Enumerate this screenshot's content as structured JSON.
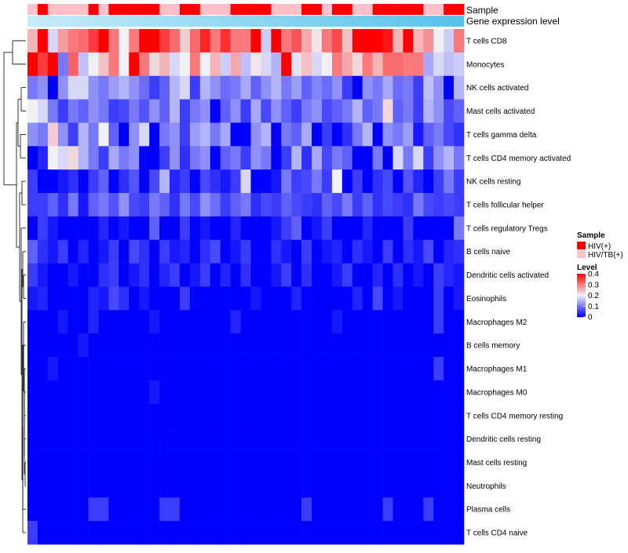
{
  "chart_data": {
    "type": "heatmap",
    "title": "",
    "annotation_tracks": [
      {
        "name": "Sample",
        "type": "categorical"
      },
      {
        "name": "Gene expression level",
        "type": "continuous"
      }
    ],
    "rows": [
      "T cells CD8",
      "Monocytes",
      "NK cells activated",
      "Mast cells activated",
      "T cells gamma delta",
      "T cells CD4 memory activated",
      "NK cells resting",
      "T cells follicular helper",
      "T cells regulatory  Tregs",
      "B cells naive",
      "Dendritic cells activated",
      "Eosinophils",
      "Macrophages M2",
      "B cells memory",
      "Macrophages M1",
      "Macrophages M0",
      "T cells CD4 memory resting",
      "Dendritic cells resting",
      "Mast cells resting",
      "Neutrophils",
      "Plasma cells",
      "T cells CD4 naive"
    ],
    "n_samples": 43,
    "sample_groups": [
      "HIV/TB(+)",
      "HIV(+)",
      "HIV/TB(+)",
      "HIV/TB(+)",
      "HIV/TB(+)",
      "HIV/TB(+)",
      "HIV(+)",
      "HIV/TB(+)",
      "HIV(+)",
      "HIV(+)",
      "HIV(+)",
      "HIV(+)",
      "HIV(+)",
      "HIV/TB(+)",
      "HIV/TB(+)",
      "HIV(+)",
      "HIV(+)",
      "HIV/TB(+)",
      "HIV/TB(+)",
      "HIV/TB(+)",
      "HIV(+)",
      "HIV(+)",
      "HIV(+)",
      "HIV(+)",
      "HIV/TB(+)",
      "HIV/TB(+)",
      "HIV/TB(+)",
      "HIV(+)",
      "HIV(+)",
      "HIV/TB(+)",
      "HIV(+)",
      "HIV(+)",
      "HIV/TB(+)",
      "HIV/TB(+)",
      "HIV(+)",
      "HIV(+)",
      "HIV(+)",
      "HIV(+)",
      "HIV(+)",
      "HIV/TB(+)",
      "HIV/TB(+)",
      "HIV(+)",
      "HIV(+)"
    ],
    "values": [
      [
        0.25,
        0.4,
        0.18,
        0.27,
        0.3,
        0.31,
        0.35,
        0.4,
        0.3,
        0.2,
        0.3,
        0.4,
        0.4,
        0.35,
        0.31,
        0.23,
        0.31,
        0.37,
        0.3,
        0.36,
        0.3,
        0.3,
        0.4,
        0.17,
        0.4,
        0.3,
        0.33,
        0.26,
        0.21,
        0.3,
        0.34,
        0.24,
        0.4,
        0.4,
        0.4,
        0.38,
        0.25,
        0.4,
        0.25,
        0.28,
        0.2,
        0.17,
        0.3
      ],
      [
        0.4,
        0.35,
        0.4,
        0.1,
        0.32,
        0.16,
        0.2,
        0.24,
        0.3,
        0.2,
        0.4,
        0.3,
        0.22,
        0.25,
        0.18,
        0.2,
        0.3,
        0.2,
        0.25,
        0.17,
        0.26,
        0.16,
        0.21,
        0.18,
        0.15,
        0.4,
        0.19,
        0.24,
        0.18,
        0.2,
        0.3,
        0.26,
        0.22,
        0.3,
        0.25,
        0.31,
        0.31,
        0.3,
        0.3,
        0.14,
        0.18,
        0.16,
        0.17
      ],
      [
        0.1,
        0.12,
        0.0,
        0.12,
        0.18,
        0.18,
        0.12,
        0.1,
        0.13,
        0.15,
        0.12,
        0.09,
        0.05,
        0.08,
        0.15,
        0.18,
        0.05,
        0.15,
        0.12,
        0.09,
        0.1,
        0.14,
        0.08,
        0.12,
        0.15,
        0.1,
        0.13,
        0.08,
        0.11,
        0.09,
        0.12,
        0.05,
        0.0,
        0.12,
        0.1,
        0.14,
        0.09,
        0.1,
        0.05,
        0.16,
        0.12,
        0.0,
        0.15
      ],
      [
        0.2,
        0.18,
        0.1,
        0.05,
        0.1,
        0.08,
        0.12,
        0.1,
        0.05,
        0.06,
        0.1,
        0.07,
        0.12,
        0.08,
        0.15,
        0.05,
        0.1,
        0.12,
        0.0,
        0.08,
        0.12,
        0.05,
        0.14,
        0.06,
        0.12,
        0.08,
        0.05,
        0.1,
        0.12,
        0.06,
        0.08,
        0.1,
        0.15,
        0.08,
        0.1,
        0.22,
        0.08,
        0.1,
        0.05,
        0.15,
        0.12,
        0.06,
        0.08
      ],
      [
        0.12,
        0.1,
        0.23,
        0.12,
        0.05,
        0.15,
        0.1,
        0.2,
        0.08,
        0.0,
        0.12,
        0.18,
        0.0,
        0.1,
        0.12,
        0.05,
        0.13,
        0.15,
        0.1,
        0.14,
        0.0,
        0.0,
        0.12,
        0.15,
        0.0,
        0.1,
        0.08,
        0.14,
        0.0,
        0.05,
        0.0,
        0.04,
        0.1,
        0.15,
        0.0,
        0.12,
        0.1,
        0.13,
        0.02,
        0.08,
        0.1,
        0.06,
        0.04
      ],
      [
        0.0,
        0.03,
        0.2,
        0.18,
        0.22,
        0.15,
        0.1,
        0.05,
        0.14,
        0.1,
        0.12,
        0.0,
        0.0,
        0.05,
        0.12,
        0.04,
        0.1,
        0.12,
        0.0,
        0.08,
        0.1,
        0.05,
        0.12,
        0.1,
        0.0,
        0.05,
        0.15,
        0.04,
        0.14,
        0.06,
        0.1,
        0.08,
        0.0,
        0.0,
        0.1,
        0.0,
        0.18,
        0.1,
        0.18,
        0.05,
        0.12,
        0.15,
        0.1
      ],
      [
        0.05,
        0.0,
        0.0,
        0.02,
        0.04,
        0.0,
        0.05,
        0.08,
        0.0,
        0.04,
        0.07,
        0.0,
        0.06,
        0.15,
        0.03,
        0.05,
        0.0,
        0.06,
        0.04,
        0.02,
        0.05,
        0.18,
        0.0,
        0.0,
        0.02,
        0.1,
        0.05,
        0.06,
        0.1,
        0.05,
        0.2,
        0.0,
        0.05,
        0.0,
        0.04,
        0.06,
        0.0,
        0.07,
        0.03,
        0.0,
        0.05,
        0.1,
        0.05
      ],
      [
        0.05,
        0.05,
        0.08,
        0.04,
        0.1,
        0.02,
        0.08,
        0.1,
        0.07,
        0.12,
        0.06,
        0.05,
        0.1,
        0.08,
        0.04,
        0.1,
        0.06,
        0.12,
        0.09,
        0.05,
        0.08,
        0.1,
        0.04,
        0.06,
        0.05,
        0.08,
        0.06,
        0.05,
        0.04,
        0.08,
        0.06,
        0.1,
        0.05,
        0.08,
        0.04,
        0.06,
        0.05,
        0.04,
        0.1,
        0.06,
        0.05,
        0.06,
        0.05
      ],
      [
        0.0,
        0.05,
        0.02,
        0.0,
        0.0,
        0.0,
        0.0,
        0.03,
        0.0,
        0.02,
        0.0,
        0.0,
        0.08,
        0.0,
        0.0,
        0.05,
        0.0,
        0.02,
        0.0,
        0.0,
        0.03,
        0.0,
        0.0,
        0.0,
        0.02,
        0.05,
        0.08,
        0.0,
        0.02,
        0.05,
        0.0,
        0.0,
        0.0,
        0.03,
        0.0,
        0.0,
        0.0,
        0.05,
        0.0,
        0.0,
        0.0,
        0.0,
        0.1
      ],
      [
        0.08,
        0.04,
        0.02,
        0.05,
        0.0,
        0.03,
        0.0,
        0.02,
        0.05,
        0.0,
        0.06,
        0.04,
        0.0,
        0.05,
        0.02,
        0.03,
        0.0,
        0.04,
        0.06,
        0.0,
        0.02,
        0.05,
        0.0,
        0.0,
        0.04,
        0.02,
        0.0,
        0.05,
        0.0,
        0.02,
        0.03,
        0.0,
        0.04,
        0.02,
        0.0,
        0.05,
        0.0,
        0.04,
        0.02,
        0.06,
        0.0,
        0.03,
        0.04
      ],
      [
        0.05,
        0.02,
        0.0,
        0.0,
        0.02,
        0.0,
        0.0,
        0.04,
        0.05,
        0.0,
        0.02,
        0.04,
        0.0,
        0.03,
        0.05,
        0.0,
        0.02,
        0.05,
        0.0,
        0.03,
        0.0,
        0.04,
        0.0,
        0.0,
        0.02,
        0.05,
        0.0,
        0.04,
        0.0,
        0.0,
        0.02,
        0.05,
        0.0,
        0.0,
        0.03,
        0.0,
        0.04,
        0.0,
        0.02,
        0.0,
        0.05,
        0.03,
        0.02
      ],
      [
        0.02,
        0.03,
        0.0,
        0.0,
        0.0,
        0.0,
        0.03,
        0.02,
        0.06,
        0.04,
        0.0,
        0.02,
        0.0,
        0.0,
        0.0,
        0.05,
        0.0,
        0.0,
        0.0,
        0.0,
        0.0,
        0.0,
        0.02,
        0.0,
        0.0,
        0.0,
        0.03,
        0.0,
        0.0,
        0.0,
        0.0,
        0.0,
        0.03,
        0.0,
        0.06,
        0.0,
        0.02,
        0.0,
        0.0,
        0.0,
        0.05,
        0.0,
        0.02
      ],
      [
        0.0,
        0.0,
        0.0,
        0.02,
        0.0,
        0.0,
        0.03,
        0.0,
        0.0,
        0.0,
        0.0,
        0.0,
        0.02,
        0.0,
        0.0,
        0.0,
        0.0,
        0.0,
        0.0,
        0.0,
        0.03,
        0.0,
        0.0,
        0.0,
        0.0,
        0.0,
        0.0,
        0.0,
        0.0,
        0.0,
        0.02,
        0.0,
        0.0,
        0.0,
        0.0,
        0.0,
        0.0,
        0.0,
        0.0,
        0.0,
        0.05,
        0.0,
        0.0
      ],
      [
        0.0,
        0.0,
        0.0,
        0.0,
        0.0,
        0.02,
        0.0,
        0.0,
        0.0,
        0.0,
        0.0,
        0.0,
        0.0,
        0.0,
        0.0,
        0.0,
        0.0,
        0.0,
        0.0,
        0.0,
        0.0,
        0.0,
        0.0,
        0.0,
        0.0,
        0.0,
        0.0,
        0.0,
        0.0,
        0.0,
        0.0,
        0.0,
        0.0,
        0.0,
        0.0,
        0.0,
        0.0,
        0.0,
        0.0,
        0.0,
        0.0,
        0.0,
        0.0
      ],
      [
        0.0,
        0.0,
        0.02,
        0.0,
        0.0,
        0.0,
        0.0,
        0.0,
        0.0,
        0.0,
        0.0,
        0.0,
        0.0,
        0.0,
        0.0,
        0.0,
        0.0,
        0.0,
        0.0,
        0.0,
        0.0,
        0.0,
        0.0,
        0.0,
        0.0,
        0.0,
        0.0,
        0.0,
        0.0,
        0.0,
        0.0,
        0.0,
        0.0,
        0.0,
        0.0,
        0.0,
        0.0,
        0.0,
        0.0,
        0.0,
        0.05,
        0.0,
        0.0
      ],
      [
        0.0,
        0.0,
        0.0,
        0.0,
        0.0,
        0.0,
        0.0,
        0.0,
        0.0,
        0.0,
        0.0,
        0.0,
        0.02,
        0.0,
        0.0,
        0.0,
        0.0,
        0.0,
        0.0,
        0.0,
        0.0,
        0.0,
        0.0,
        0.0,
        0.0,
        0.0,
        0.0,
        0.0,
        0.0,
        0.0,
        0.0,
        0.0,
        0.0,
        0.0,
        0.0,
        0.0,
        0.0,
        0.0,
        0.0,
        0.0,
        0.0,
        0.0,
        0.0
      ],
      [
        0.0,
        0.0,
        0.0,
        0.0,
        0.0,
        0.0,
        0.0,
        0.0,
        0.0,
        0.0,
        0.0,
        0.0,
        0.0,
        0.0,
        0.0,
        0.0,
        0.0,
        0.0,
        0.0,
        0.0,
        0.0,
        0.0,
        0.0,
        0.0,
        0.0,
        0.0,
        0.0,
        0.0,
        0.0,
        0.0,
        0.0,
        0.0,
        0.0,
        0.0,
        0.0,
        0.0,
        0.0,
        0.0,
        0.0,
        0.0,
        0.0,
        0.0,
        0.0
      ],
      [
        0.0,
        0.0,
        0.0,
        0.0,
        0.0,
        0.0,
        0.0,
        0.0,
        0.0,
        0.0,
        0.0,
        0.0,
        0.0,
        0.0,
        0.0,
        0.0,
        0.0,
        0.0,
        0.0,
        0.0,
        0.0,
        0.0,
        0.0,
        0.0,
        0.0,
        0.0,
        0.0,
        0.0,
        0.0,
        0.0,
        0.0,
        0.0,
        0.0,
        0.0,
        0.0,
        0.0,
        0.0,
        0.0,
        0.0,
        0.0,
        0.0,
        0.0,
        0.0
      ],
      [
        0.0,
        0.0,
        0.0,
        0.0,
        0.0,
        0.0,
        0.0,
        0.0,
        0.0,
        0.0,
        0.0,
        0.0,
        0.0,
        0.0,
        0.0,
        0.0,
        0.0,
        0.0,
        0.0,
        0.0,
        0.0,
        0.0,
        0.0,
        0.0,
        0.0,
        0.0,
        0.0,
        0.0,
        0.0,
        0.0,
        0.0,
        0.0,
        0.0,
        0.0,
        0.0,
        0.0,
        0.0,
        0.0,
        0.0,
        0.0,
        0.0,
        0.0,
        0.0
      ],
      [
        0.0,
        0.0,
        0.0,
        0.0,
        0.0,
        0.0,
        0.0,
        0.0,
        0.0,
        0.0,
        0.0,
        0.0,
        0.0,
        0.0,
        0.0,
        0.0,
        0.0,
        0.0,
        0.0,
        0.0,
        0.0,
        0.0,
        0.0,
        0.0,
        0.0,
        0.0,
        0.0,
        0.0,
        0.0,
        0.0,
        0.0,
        0.0,
        0.0,
        0.0,
        0.0,
        0.0,
        0.0,
        0.0,
        0.0,
        0.0,
        0.0,
        0.0,
        0.0
      ],
      [
        0.0,
        0.0,
        0.0,
        0.0,
        0.0,
        0.0,
        0.05,
        0.05,
        0.0,
        0.0,
        0.0,
        0.0,
        0.0,
        0.05,
        0.05,
        0.0,
        0.0,
        0.0,
        0.0,
        0.0,
        0.0,
        0.0,
        0.0,
        0.0,
        0.0,
        0.0,
        0.0,
        0.05,
        0.0,
        0.0,
        0.0,
        0.0,
        0.0,
        0.0,
        0.0,
        0.05,
        0.0,
        0.0,
        0.0,
        0.05,
        0.0,
        0.0,
        0.0
      ],
      [
        0.05,
        0.0,
        0.0,
        0.0,
        0.0,
        0.0,
        0.0,
        0.0,
        0.0,
        0.0,
        0.0,
        0.0,
        0.0,
        0.0,
        0.0,
        0.0,
        0.0,
        0.0,
        0.0,
        0.0,
        0.0,
        0.0,
        0.0,
        0.0,
        0.0,
        0.0,
        0.0,
        0.0,
        0.0,
        0.0,
        0.0,
        0.0,
        0.0,
        0.0,
        0.0,
        0.0,
        0.0,
        0.0,
        0.0,
        0.0,
        0.0,
        0.0,
        0.0
      ]
    ],
    "legend_sample": {
      "title": "Sample",
      "entries": [
        {
          "label": "HIV(+)",
          "color": "#ff0000"
        },
        {
          "label": "HIV/TB(+)",
          "color": "#ffc0cb"
        }
      ]
    },
    "legend_level": {
      "title": "Level",
      "ticks": [
        {
          "value": 0.4,
          "label": "0.4"
        },
        {
          "value": 0.3,
          "label": "0.3"
        },
        {
          "value": 0.2,
          "label": "0.2"
        },
        {
          "value": 0.1,
          "label": "0.1"
        },
        {
          "value": 0,
          "label": "0"
        }
      ],
      "range": [
        0,
        0.4
      ]
    },
    "colors": {
      "low": "#0000ff",
      "mid": "#f0f0f5",
      "high": "#ff0000",
      "expr_light": "#c6ecfa",
      "expr_dark": "#56c2ec"
    }
  }
}
